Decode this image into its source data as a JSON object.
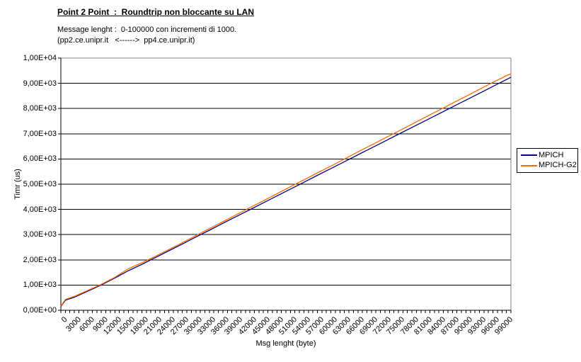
{
  "header": {
    "title": "Point 2 Point  :  Roundtrip non bloccante su LAN",
    "subtitle_line1": "Message lenght :  0-100000 con incrementi di 1000.",
    "subtitle_line2": "(pp2.ce.unipr.it   <------>  pp4.ce.unipr.it)"
  },
  "chart_data": {
    "type": "line",
    "title": "Point 2 Point : Roundtrip non bloccante su LAN",
    "xlabel": "Msg lenght (byte)",
    "ylabel": "Timr (us)",
    "xlim": [
      0,
      100000
    ],
    "ylim": [
      0,
      10000
    ],
    "grid": "horizontal, black, every 1000 us",
    "legend_position": "right, boxed",
    "x_minor_tick_step": 1000,
    "x_label_step": 3000,
    "y_tick_labels": [
      "0,00E+00",
      "1,00E+03",
      "2,00E+03",
      "3,00E+03",
      "4,00E+03",
      "5,00E+03",
      "6,00E+03",
      "7,00E+03",
      "8,00E+03",
      "9,00E+03",
      "1,00E+04"
    ],
    "x_tick_labels": [
      "0",
      "3000",
      "6000",
      "9000",
      "12000",
      "15000",
      "18000",
      "21000",
      "24000",
      "27000",
      "30000",
      "33000",
      "36000",
      "39000",
      "42000",
      "45000",
      "48000",
      "51000",
      "54000",
      "57000",
      "60000",
      "63000",
      "66000",
      "69000",
      "72000",
      "75000",
      "78000",
      "81000",
      "84000",
      "87000",
      "90000",
      "93000",
      "96000",
      "99000"
    ],
    "x": [
      0,
      1000,
      3000,
      6000,
      9000,
      12000,
      15000,
      18000,
      21000,
      24000,
      27000,
      30000,
      33000,
      36000,
      39000,
      42000,
      45000,
      48000,
      51000,
      54000,
      57000,
      60000,
      63000,
      66000,
      69000,
      72000,
      75000,
      78000,
      81000,
      84000,
      87000,
      90000,
      93000,
      96000,
      99000,
      100000
    ],
    "series": [
      {
        "name": "MPICH",
        "color": "#000080",
        "values": [
          150,
          400,
          520,
          760,
          1005,
          1280,
          1570,
          1820,
          2090,
          2360,
          2630,
          2905,
          3175,
          3450,
          3720,
          3990,
          4260,
          4535,
          4805,
          5075,
          5350,
          5620,
          5890,
          6165,
          6435,
          6705,
          6980,
          7250,
          7520,
          7790,
          8065,
          8335,
          8605,
          8880,
          9150,
          9240
        ]
      },
      {
        "name": "MPICH-G2",
        "color": "#FF6600",
        "values": [
          160,
          430,
          550,
          790,
          1030,
          1310,
          1650,
          1880,
          2140,
          2410,
          2680,
          2960,
          3240,
          3510,
          3790,
          4070,
          4340,
          4620,
          4900,
          5170,
          5450,
          5720,
          6000,
          6280,
          6550,
          6830,
          7100,
          7380,
          7660,
          7930,
          8210,
          8480,
          8760,
          9040,
          9300,
          9380
        ]
      }
    ],
    "colors": {
      "axis": "#000000",
      "plot_border_top_right": "#808080",
      "gridline": "#000000",
      "background": "#ffffff"
    }
  }
}
